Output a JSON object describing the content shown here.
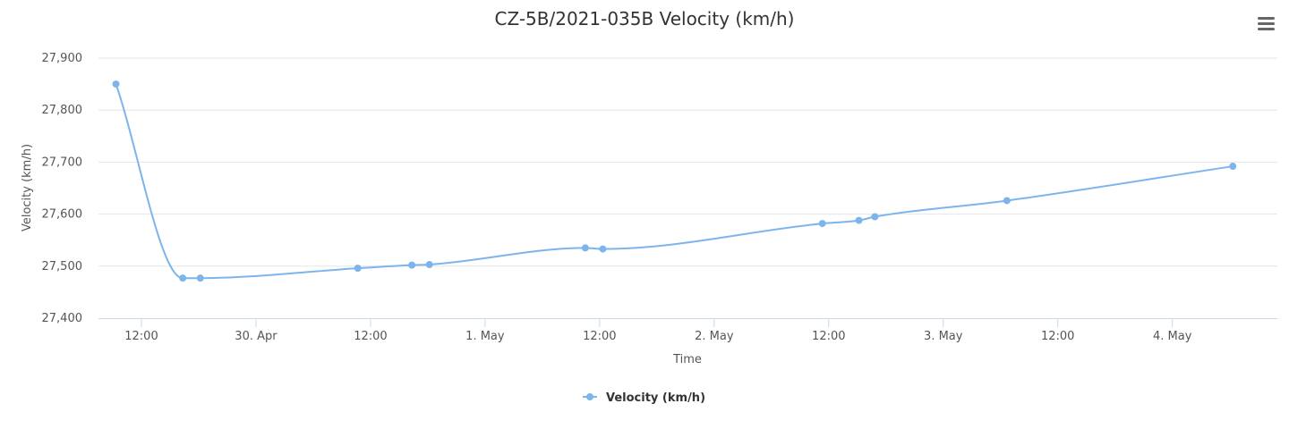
{
  "chart_data": {
    "type": "line",
    "title": "CZ-5B/2021-035B Velocity (km/h)",
    "xlabel": "Time",
    "ylabel": "Velocity (km/h)",
    "x_axis_type": "datetime",
    "xlim": [
      "2021-04-29T07:30",
      "2021-05-04T11:00"
    ],
    "ylim": [
      27400,
      27900
    ],
    "y_ticks": [
      27400,
      27500,
      27600,
      27700,
      27800,
      27900
    ],
    "y_tick_labels": [
      "27,400",
      "27,500",
      "27,600",
      "27,700",
      "27,800",
      "27,900"
    ],
    "x_ticks": [
      "2021-04-29T12:00",
      "2021-04-30T00:00",
      "2021-04-30T12:00",
      "2021-05-01T00:00",
      "2021-05-01T12:00",
      "2021-05-02T00:00",
      "2021-05-02T12:00",
      "2021-05-03T00:00",
      "2021-05-03T12:00",
      "2021-05-04T00:00"
    ],
    "x_tick_labels": [
      "12:00",
      "30. Apr",
      "12:00",
      "1. May",
      "12:00",
      "2. May",
      "12:00",
      "3. May",
      "12:00",
      "4. May"
    ],
    "grid": true,
    "legend_position": "bottom-center",
    "series": [
      {
        "name": "Velocity (km/h)",
        "color": "#7cb5ec",
        "points": [
          {
            "x": "2021-04-29T09:20",
            "y": 27850
          },
          {
            "x": "2021-04-29T16:20",
            "y": 27477
          },
          {
            "x": "2021-04-29T18:10",
            "y": 27477
          },
          {
            "x": "2021-04-30T10:40",
            "y": 27496
          },
          {
            "x": "2021-04-30T16:20",
            "y": 27502
          },
          {
            "x": "2021-04-30T18:10",
            "y": 27503
          },
          {
            "x": "2021-05-01T10:30",
            "y": 27535
          },
          {
            "x": "2021-05-01T12:20",
            "y": 27533
          },
          {
            "x": "2021-05-02T11:20",
            "y": 27582
          },
          {
            "x": "2021-05-02T15:10",
            "y": 27588
          },
          {
            "x": "2021-05-02T16:50",
            "y": 27595
          },
          {
            "x": "2021-05-03T06:40",
            "y": 27626
          },
          {
            "x": "2021-05-04T06:20",
            "y": 27692
          }
        ]
      }
    ]
  },
  "toolbar": {
    "menu_icon": "hamburger-menu-icon"
  }
}
